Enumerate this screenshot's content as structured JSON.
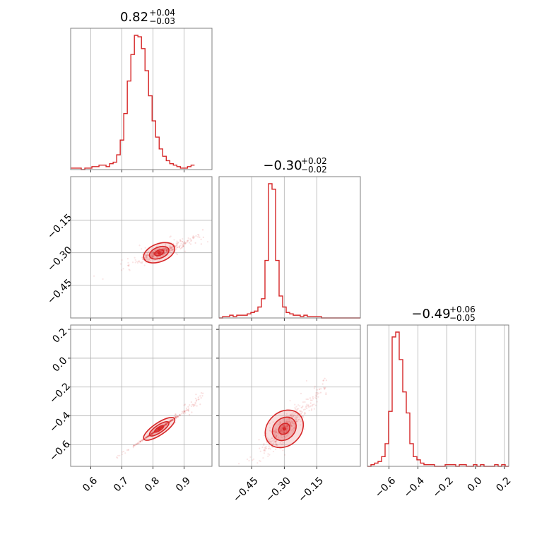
{
  "chart_data": {
    "type": "corner",
    "color": "#d62728",
    "grid": true,
    "params": [
      {
        "median": 0.82,
        "title": {
          "main": "0.82",
          "plus": "+0.04",
          "minus": "−0.03"
        }
      },
      {
        "median": -0.3,
        "title": {
          "main": "−0.30",
          "plus": "+0.02",
          "minus": "−0.02"
        }
      },
      {
        "median": -0.49,
        "title": {
          "main": "−0.49",
          "plus": "+0.06",
          "minus": "−0.05"
        }
      }
    ],
    "ranges": [
      [
        0.535,
        0.99
      ],
      [
        -0.6,
        0.05
      ],
      [
        -0.75,
        0.23
      ]
    ],
    "ticks": [
      {
        "values": [
          0.6,
          0.7,
          0.8,
          0.9
        ],
        "labels": [
          "0.6",
          "0.7",
          "0.8",
          "0.9"
        ]
      },
      {
        "values": [
          -0.45,
          -0.3,
          -0.15
        ],
        "labels": [
          "−0.45",
          "−0.30",
          "−0.15"
        ]
      },
      {
        "values": [
          -0.6,
          -0.4,
          -0.2,
          0.0,
          0.2
        ],
        "labels": [
          "−0.6",
          "−0.4",
          "−0.2",
          "0.0",
          "0.2"
        ]
      }
    ],
    "histograms": [
      {
        "param": 0,
        "bin_width": 0.0114,
        "counts": [
          1,
          1,
          1,
          0,
          1,
          1,
          2,
          2,
          3,
          3,
          2,
          4,
          5,
          10,
          20,
          38,
          60,
          78,
          91,
          90,
          82,
          67,
          50,
          33,
          22,
          14,
          9,
          6,
          4,
          3,
          2,
          1,
          1,
          2,
          3
        ]
      },
      {
        "param": 1,
        "bin_width": 0.01625,
        "counts": [
          0,
          1,
          1,
          2,
          1,
          2,
          2,
          2,
          3,
          4,
          5,
          8,
          14,
          42,
          98,
          94,
          42,
          16,
          8,
          4,
          3,
          2,
          2,
          1,
          2,
          1,
          1,
          1,
          1,
          0,
          0,
          0,
          0,
          0,
          0,
          0,
          0,
          0,
          0,
          0
        ]
      },
      {
        "param": 2,
        "bin_width": 0.0245,
        "counts": [
          0,
          1,
          2,
          3,
          6,
          14,
          34,
          80,
          83,
          66,
          46,
          33,
          14,
          6,
          4,
          2,
          1,
          1,
          1,
          0,
          0,
          0,
          1,
          1,
          1,
          0,
          1,
          1,
          0,
          0,
          1,
          0,
          1,
          0,
          0,
          0,
          1,
          0,
          1,
          0
        ]
      }
    ],
    "contours_2d": [
      {
        "x_param": 0,
        "y_param": 1,
        "center": [
          0.82,
          -0.3
        ],
        "slope": 0.53,
        "corr": 0.85
      },
      {
        "x_param": 0,
        "y_param": 2,
        "center": [
          0.82,
          -0.49
        ],
        "slope": 1.45,
        "corr": 0.97
      },
      {
        "x_param": 1,
        "y_param": 2,
        "center": [
          -0.3,
          -0.49
        ],
        "slope": 1.4,
        "corr": 0.65
      }
    ]
  }
}
